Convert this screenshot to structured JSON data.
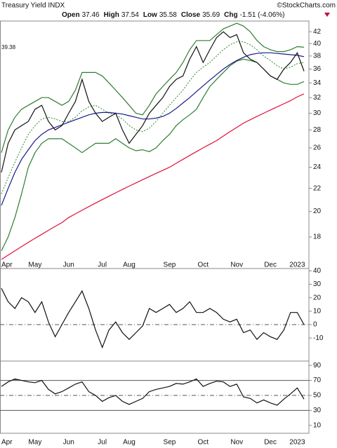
{
  "chart_data": [
    {
      "type": "line",
      "title": "Treasury Yield INDX",
      "source": "©StockCharts.com",
      "quote": {
        "labels": [
          "Open",
          "High",
          "Low",
          "Close",
          "Chg"
        ],
        "values": [
          37.46,
          37.54,
          35.58,
          35.69,
          -1.51
        ],
        "value_labels": [
          "37.46",
          "37.54",
          "35.58",
          "35.69",
          "-1.51 (-4.06%)"
        ]
      },
      "annotation": "39.38",
      "log_scale": true,
      "ylim": [
        15.8,
        43.9
      ],
      "yticks": [
        18,
        20,
        22,
        24,
        26,
        28,
        30,
        32,
        34,
        36,
        38,
        40,
        42
      ],
      "categories": [
        "Apr",
        null,
        null,
        null,
        null,
        "May",
        null,
        null,
        null,
        null,
        "Jun",
        null,
        null,
        null,
        null,
        "Jul",
        null,
        null,
        null,
        "Aug",
        null,
        null,
        null,
        null,
        null,
        "Sep",
        null,
        null,
        null,
        null,
        "Oct",
        null,
        null,
        null,
        null,
        "Nov",
        null,
        null,
        null,
        null,
        "Dec",
        null,
        null,
        null,
        "2023",
        null
      ],
      "series": [
        {
          "color": "#e0103a",
          "values": [
            16.4,
            16.7,
            17,
            17.3,
            17.6,
            17.9,
            18.2,
            18.5,
            18.8,
            19.1,
            19.5,
            19.8,
            20.1,
            20.4,
            20.7,
            21,
            21.3,
            21.6,
            21.9,
            22.2,
            22.5,
            22.8,
            23.1,
            23.4,
            23.7,
            24,
            24.4,
            24.8,
            25.2,
            25.6,
            26,
            26.4,
            26.8,
            27.3,
            27.8,
            28.3,
            28.8,
            29.2,
            29.6,
            30,
            30.4,
            30.8,
            31.2,
            31.6,
            32.1,
            32.5
          ]
        },
        {
          "color": "#2e7d32",
          "values": [
            25.5,
            28,
            29.5,
            30.5,
            31,
            31.5,
            32,
            32,
            31.5,
            31,
            31.5,
            33,
            35.5,
            35.5,
            35.5,
            35,
            34,
            33,
            32,
            31,
            30,
            29.8,
            31,
            32.5,
            33.5,
            34.5,
            35.5,
            37,
            39,
            40.5,
            40.5,
            40.5,
            41.5,
            42.5,
            43,
            43.5,
            43,
            42,
            40.5,
            39.5,
            39,
            38.7,
            38.7,
            39,
            39.5,
            39.4
          ]
        },
        {
          "color": "#2e7d32",
          "values": [
            17,
            18,
            19.5,
            21.5,
            24,
            25.5,
            26.5,
            27,
            27,
            27,
            26.5,
            26,
            25.5,
            26,
            26.5,
            26.5,
            26.5,
            27,
            26.5,
            26,
            25.7,
            25.8,
            25.6,
            26,
            26.8,
            27.5,
            28.5,
            29.2,
            29.8,
            30.5,
            32,
            33.5,
            34.5,
            35.5,
            36.5,
            37.2,
            37.5,
            37.3,
            37,
            36,
            35,
            34.5,
            34,
            33.8,
            33.8,
            34.2
          ]
        },
        {
          "color": "#2a8a2a",
          "style": "dotted",
          "values": [
            21.5,
            23,
            24.5,
            26,
            27.5,
            28.5,
            29.3,
            29.5,
            29.3,
            29,
            29,
            29.5,
            30.3,
            30.8,
            31,
            30.5,
            30,
            29.8,
            29.3,
            28.5,
            28,
            27.8,
            28.2,
            29,
            30,
            31,
            32,
            33,
            34.3,
            35.5,
            36.3,
            37,
            38,
            39,
            39.8,
            40.3,
            40.3,
            39.8,
            39,
            38,
            37.3,
            36.5,
            36,
            36.3,
            36.8,
            37
          ]
        },
        {
          "color": "#1a1a8c",
          "values": [
            20.5,
            22,
            23.5,
            24.8,
            25.8,
            26.8,
            27.5,
            28,
            28.3,
            28.6,
            28.9,
            29.2,
            29.5,
            29.8,
            30,
            30.1,
            30.1,
            30,
            29.9,
            29.7,
            29.5,
            29.3,
            29.3,
            29.4,
            29.6,
            30,
            30.6,
            31.3,
            32,
            32.8,
            33.6,
            34.4,
            35.2,
            36,
            36.7,
            37.3,
            37.8,
            38.2,
            38.4,
            38.5,
            38.5,
            38.4,
            38.3,
            38.2,
            38.1,
            37.9
          ]
        },
        {
          "color": "#111111",
          "values": [
            23.5,
            26.5,
            28,
            28.5,
            29,
            30.5,
            31,
            29,
            28,
            28.5,
            30,
            31.5,
            34.5,
            31.5,
            30,
            29,
            29.5,
            30,
            28,
            26.5,
            27.5,
            28.5,
            30,
            31,
            32,
            33.5,
            34.5,
            35,
            37.5,
            39.5,
            37,
            39,
            41,
            42,
            41,
            41.5,
            38.5,
            37.5,
            37,
            36,
            35,
            34.5,
            36,
            37,
            38.5,
            35.69
          ]
        }
      ]
    },
    {
      "type": "line",
      "ylim": [
        -27.1,
        41.7
      ],
      "yticks": [
        40,
        30,
        20,
        10,
        0,
        -10
      ],
      "reference_lines": [
        {
          "value": 0,
          "style": "dashdot"
        }
      ],
      "series": [
        {
          "color": "#111111",
          "values": [
            27,
            17,
            12,
            20,
            17,
            9,
            17,
            2,
            -9,
            0,
            9,
            17,
            25,
            12,
            -4,
            -17,
            -4,
            2,
            -6,
            -11,
            -6,
            -1,
            12,
            9,
            12,
            15,
            9,
            12,
            17,
            9,
            9,
            12,
            9,
            4,
            2,
            4,
            -6,
            -4,
            -11,
            -6,
            -9,
            -11,
            -4,
            9,
            9,
            0
          ]
        }
      ]
    },
    {
      "type": "line",
      "ylim": [
        -0.5,
        95.8
      ],
      "yticks": [
        90,
        70,
        50,
        30,
        10
      ],
      "reference_lines": [
        {
          "value": 70,
          "style": "solid",
          "fill_above": "#3f7f3f"
        },
        {
          "value": 50,
          "style": "dashdot"
        },
        {
          "value": 30,
          "style": "solid"
        }
      ],
      "categories": [
        "Apr",
        null,
        null,
        null,
        null,
        "May",
        null,
        null,
        null,
        null,
        "Jun",
        null,
        null,
        null,
        null,
        "Jul",
        null,
        null,
        null,
        "Aug",
        null,
        null,
        null,
        null,
        null,
        "Sep",
        null,
        null,
        null,
        null,
        "Oct",
        null,
        null,
        null,
        null,
        "Nov",
        null,
        null,
        null,
        null,
        "Dec",
        null,
        null,
        null,
        "2023",
        null
      ],
      "series": [
        {
          "color": "#111111",
          "values": [
            62,
            68,
            72,
            70,
            68,
            67,
            70,
            58,
            52,
            55,
            60,
            65,
            68,
            55,
            50,
            42,
            47,
            50,
            42,
            38,
            42,
            46,
            55,
            58,
            60,
            62,
            66,
            65,
            68,
            72,
            62,
            66,
            69,
            68,
            62,
            65,
            48,
            46,
            40,
            44,
            40,
            37,
            45,
            52,
            60,
            45
          ]
        }
      ]
    }
  ]
}
